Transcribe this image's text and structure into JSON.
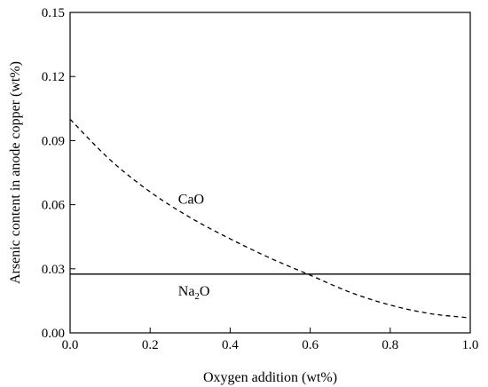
{
  "chart_data": {
    "type": "line",
    "title": "",
    "xlabel": "Oxygen addition (wt%)",
    "ylabel": "Arsenic content in anode copper (wt%)",
    "xlim": [
      0.0,
      1.0
    ],
    "ylim": [
      0.0,
      0.15
    ],
    "x_ticks": [
      "0.0",
      "0.2",
      "0.4",
      "0.6",
      "0.8",
      "1.0"
    ],
    "y_ticks": [
      "0.00",
      "0.03",
      "0.06",
      "0.09",
      "0.12",
      "0.15"
    ],
    "grid": false,
    "legend": "none",
    "series": [
      {
        "name": "CaO",
        "label_main": "CaO",
        "label_sub": "",
        "label_tail": "",
        "label_at": [
          0.27,
          0.063
        ],
        "style": "dashed",
        "color": "#000000",
        "x": [
          0.0,
          0.1,
          0.2,
          0.3,
          0.4,
          0.5,
          0.6,
          0.7,
          0.8,
          0.9,
          1.0
        ],
        "y": [
          0.1,
          0.081,
          0.066,
          0.054,
          0.044,
          0.035,
          0.027,
          0.019,
          0.013,
          0.009,
          0.007
        ]
      },
      {
        "name": "Na2O",
        "label_main": "Na",
        "label_sub": "2",
        "label_tail": "O",
        "label_at": [
          0.27,
          0.02
        ],
        "style": "solid",
        "color": "#000000",
        "x": [
          0.0,
          1.0
        ],
        "y": [
          0.0275,
          0.0275
        ]
      }
    ]
  }
}
